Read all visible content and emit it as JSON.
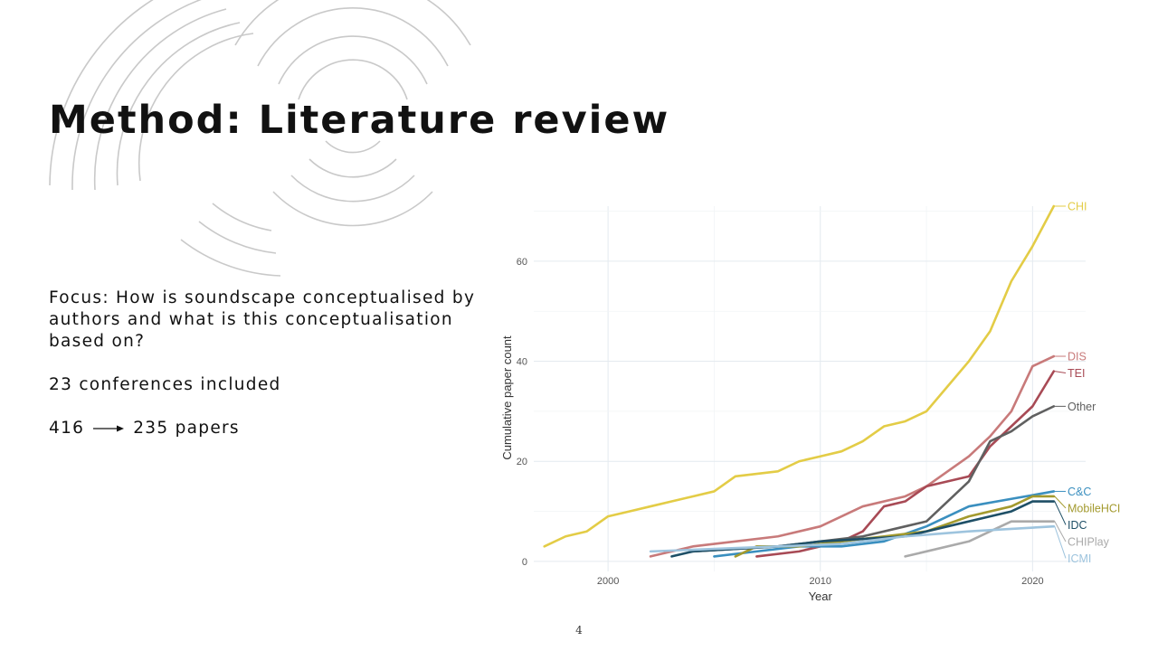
{
  "slide": {
    "title": "Method: Literature review",
    "focus": "Focus: How is soundscape conceptualised by authors and what is this conceptualisation based on?",
    "conferences": "23 conferences included",
    "papers_from": "416",
    "papers_to": "235 papers",
    "page_number": "4"
  },
  "chart_data": {
    "type": "line",
    "xlabel": "Year",
    "ylabel": "Cumulative paper count",
    "xlim": [
      1996.5,
      2022.5
    ],
    "ylim": [
      -2,
      71
    ],
    "x_ticks": [
      2000,
      2010,
      2020
    ],
    "y_ticks": [
      0,
      20,
      40,
      60
    ],
    "grid": true,
    "legend": "direct labels at right end of each line",
    "series": [
      {
        "name": "CHI",
        "color": "#e3cc46",
        "x": [
          1997,
          1998,
          1999,
          2000,
          2001,
          2002,
          2003,
          2004,
          2005,
          2006,
          2007,
          2008,
          2009,
          2010,
          2011,
          2012,
          2013,
          2014,
          2015,
          2016,
          2017,
          2018,
          2019,
          2020,
          2021
        ],
        "y": [
          3,
          5,
          6,
          9,
          10,
          11,
          12,
          13,
          14,
          17,
          17.5,
          18,
          20,
          21,
          22,
          24,
          27,
          28,
          30,
          35,
          40,
          46,
          56,
          63,
          71
        ]
      },
      {
        "name": "DIS",
        "color": "#c87a7a",
        "x": [
          2002,
          2004,
          2006,
          2008,
          2010,
          2012,
          2014,
          2015,
          2016,
          2017,
          2018,
          2019,
          2020,
          2021
        ],
        "y": [
          1,
          3,
          4,
          5,
          7,
          11,
          13,
          15,
          18,
          21,
          25,
          30,
          39,
          41
        ]
      },
      {
        "name": "TEI",
        "color": "#a84a55",
        "x": [
          2007,
          2009,
          2011,
          2012,
          2013,
          2014,
          2015,
          2017,
          2018,
          2019,
          2020,
          2021
        ],
        "y": [
          1,
          2,
          4,
          6,
          11,
          12,
          15,
          17,
          23,
          27,
          31,
          38
        ]
      },
      {
        "name": "Other",
        "color": "#606060",
        "x": [
          2004,
          2006,
          2008,
          2010,
          2012,
          2014,
          2015,
          2017,
          2018,
          2019,
          2020,
          2021
        ],
        "y": [
          2,
          2.5,
          3,
          4,
          5,
          7,
          8,
          16,
          24,
          26,
          29,
          31
        ]
      },
      {
        "name": "C&C",
        "color": "#3a8fbf",
        "x": [
          2005,
          2007,
          2009,
          2011,
          2013,
          2015,
          2017,
          2019,
          2021
        ],
        "y": [
          1,
          2,
          3,
          3,
          4,
          7,
          11,
          12.5,
          14
        ]
      },
      {
        "name": "MobileHCI",
        "color": "#a39a2e",
        "x": [
          2006,
          2007,
          2009,
          2011,
          2013,
          2015,
          2017,
          2019,
          2020,
          2021
        ],
        "y": [
          1,
          3,
          3,
          4,
          5,
          6,
          9,
          11,
          13,
          13
        ]
      },
      {
        "name": "IDC",
        "color": "#1e4f66",
        "x": [
          2003,
          2004,
          2006,
          2008,
          2010,
          2012,
          2014,
          2016,
          2018,
          2019,
          2020,
          2021
        ],
        "y": [
          1,
          2,
          2.5,
          3,
          4,
          4.5,
          5,
          7,
          9,
          10,
          12,
          12
        ]
      },
      {
        "name": "CHIPlay",
        "color": "#aaaaaa",
        "x": [
          2014,
          2017,
          2018,
          2019,
          2021
        ],
        "y": [
          1,
          4,
          6,
          8,
          8
        ]
      },
      {
        "name": "ICMI",
        "color": "#9ec4de",
        "x": [
          2002,
          2005,
          2008,
          2011,
          2014,
          2017,
          2019,
          2021
        ],
        "y": [
          2,
          2.5,
          3,
          3.5,
          5,
          6,
          6.5,
          7
        ]
      }
    ]
  }
}
